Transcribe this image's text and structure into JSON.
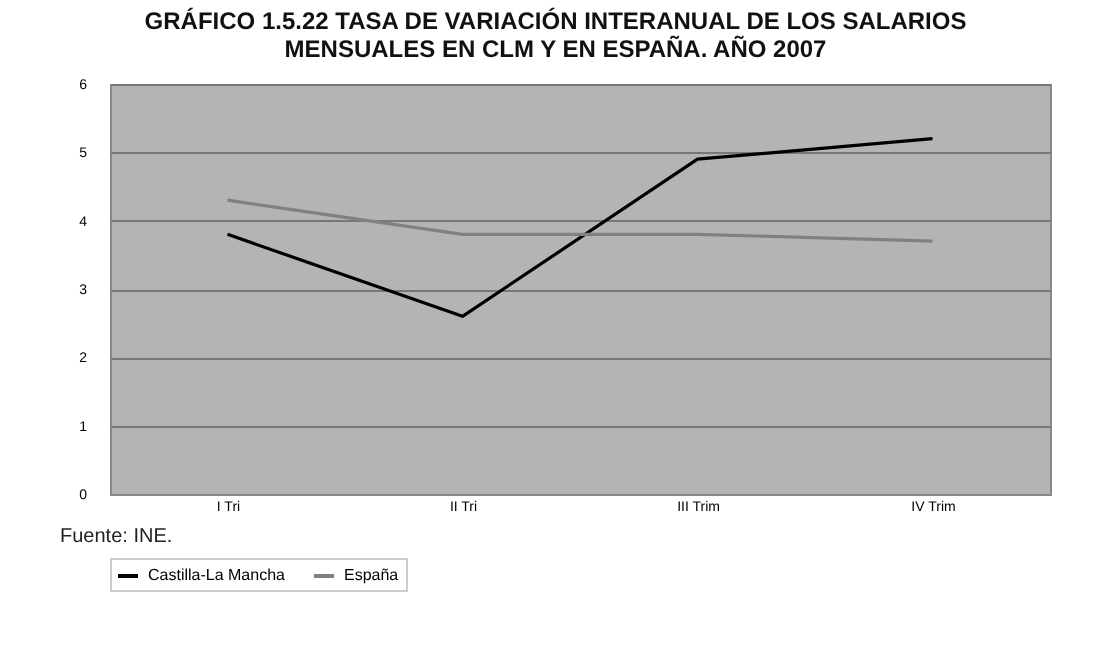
{
  "chart_data": {
    "type": "line",
    "title": [
      "GRÁFICO 1.5.22 TASA DE VARIACIÓN INTERANUAL DE LOS SALARIOS",
      "MENSUALES EN CLM Y EN ESPAÑA. AÑO 2007"
    ],
    "categories": [
      "I Tri",
      "II Tri",
      "III Trim",
      "IV Trim"
    ],
    "series": [
      {
        "name": "Castilla-La Mancha",
        "color": "#000000",
        "values": [
          3.8,
          2.6,
          4.9,
          5.2
        ]
      },
      {
        "name": "España",
        "color": "#808080",
        "values": [
          4.3,
          3.8,
          3.8,
          3.7
        ]
      }
    ],
    "ylim": [
      0,
      6
    ],
    "yticks": [
      0,
      1,
      2,
      3,
      4,
      5,
      6
    ],
    "grid": "y",
    "legend": "bottom",
    "marker": "none",
    "line_style": "solid",
    "annotations": [
      "Fuente: INE."
    ]
  }
}
